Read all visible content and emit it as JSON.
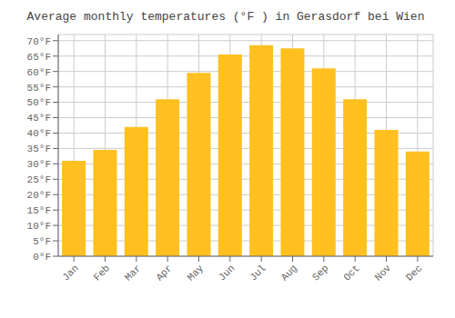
{
  "chart_data": {
    "type": "bar",
    "title": "Average monthly temperatures (°F ) in Gerasdorf bei Wien",
    "categories": [
      "Jan",
      "Feb",
      "Mar",
      "Apr",
      "May",
      "Jun",
      "Jul",
      "Aug",
      "Sep",
      "Oct",
      "Nov",
      "Dec"
    ],
    "values": [
      31,
      34.5,
      42,
      51,
      59.5,
      65.5,
      68.5,
      67.5,
      61,
      51,
      41,
      34
    ],
    "color": "#FFC020",
    "ylim": [
      0,
      72
    ],
    "yticks": [
      {
        "value": 0,
        "label": "0°F"
      },
      {
        "value": 5,
        "label": "5°F"
      },
      {
        "value": 10,
        "label": "10°F"
      },
      {
        "value": 15,
        "label": "15°F"
      },
      {
        "value": 20,
        "label": "20°F"
      },
      {
        "value": 25,
        "label": "25°F"
      },
      {
        "value": 30,
        "label": "30°F"
      },
      {
        "value": 35,
        "label": "35°F"
      },
      {
        "value": 40,
        "label": "40°F"
      },
      {
        "value": 45,
        "label": "45°F"
      },
      {
        "value": 50,
        "label": "50°F"
      },
      {
        "value": 55,
        "label": "55°F"
      },
      {
        "value": 60,
        "label": "60°F"
      },
      {
        "value": 65,
        "label": "65°F"
      },
      {
        "value": 70,
        "label": "70°F"
      }
    ],
    "grid": true
  }
}
